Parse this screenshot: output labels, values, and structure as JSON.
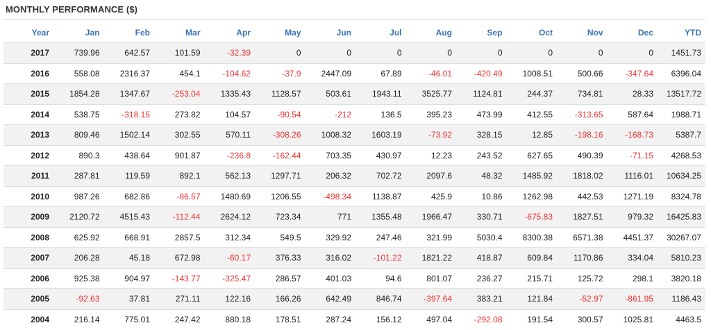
{
  "title": "MONTHLY PERFORMANCE ($)",
  "colors": {
    "header": "#3a73b5",
    "negative": "#ee3333",
    "stripe": "#f2f2f2"
  },
  "chart_data": {
    "type": "table",
    "columns": [
      "Year",
      "Jan",
      "Feb",
      "Mar",
      "Apr",
      "May",
      "Jun",
      "Jul",
      "Aug",
      "Sep",
      "Oct",
      "Nov",
      "Dec",
      "YTD"
    ],
    "rows": [
      [
        "2017",
        "739.96",
        "642.57",
        "101.59",
        "-32.39",
        "0",
        "0",
        "0",
        "0",
        "0",
        "0",
        "0",
        "0",
        "1451.73"
      ],
      [
        "2016",
        "558.08",
        "2316.37",
        "454.1",
        "-104.62",
        "-37.9",
        "2447.09",
        "67.89",
        "-46.01",
        "-420.49",
        "1008.51",
        "500.66",
        "-347.64",
        "6396.04"
      ],
      [
        "2015",
        "1854.28",
        "1347.67",
        "-253.04",
        "1335.43",
        "1128.57",
        "503.61",
        "1943.11",
        "3525.77",
        "1124.81",
        "244.37",
        "734.81",
        "28.33",
        "13517.72"
      ],
      [
        "2014",
        "538.75",
        "-318.15",
        "273.82",
        "104.57",
        "-90.54",
        "-212",
        "136.5",
        "395.23",
        "473.99",
        "412.55",
        "-313.65",
        "587.64",
        "1988.71"
      ],
      [
        "2013",
        "809.46",
        "1502.14",
        "302.55",
        "570.11",
        "-308.26",
        "1008.32",
        "1603.19",
        "-73.92",
        "328.15",
        "12.85",
        "-198.16",
        "-168.73",
        "5387.7"
      ],
      [
        "2012",
        "890.3",
        "438.64",
        "901.87",
        "-236.8",
        "-162.44",
        "703.35",
        "430.97",
        "12.23",
        "243.52",
        "627.65",
        "490.39",
        "-71.15",
        "4268.53"
      ],
      [
        "2011",
        "287.81",
        "119.59",
        "892.1",
        "562.13",
        "1297.71",
        "206.32",
        "702.72",
        "2097.6",
        "48.32",
        "1485.92",
        "1818.02",
        "1116.01",
        "10634.25"
      ],
      [
        "2010",
        "987.26",
        "682.86",
        "-86.57",
        "1480.69",
        "1206.55",
        "-498.34",
        "1138.87",
        "425.9",
        "10.86",
        "1262.98",
        "442.53",
        "1271.19",
        "8324.78"
      ],
      [
        "2009",
        "2120.72",
        "4515.43",
        "-112.44",
        "2624.12",
        "723.34",
        "771",
        "1355.48",
        "1966.47",
        "330.71",
        "-675.83",
        "1827.51",
        "979.32",
        "16425.83"
      ],
      [
        "2008",
        "625.92",
        "668.91",
        "2857.5",
        "312.34",
        "549.5",
        "329.92",
        "247.46",
        "321.99",
        "5030.4",
        "8300.38",
        "6571.38",
        "4451.37",
        "30267.07"
      ],
      [
        "2007",
        "206.28",
        "45.18",
        "672.98",
        "-60.17",
        "376.33",
        "316.02",
        "-101.22",
        "1821.22",
        "418.87",
        "609.84",
        "1170.86",
        "334.04",
        "5810.23"
      ],
      [
        "2006",
        "925.38",
        "904.97",
        "-143.77",
        "-325.47",
        "286.57",
        "401.03",
        "94.6",
        "801.07",
        "236.27",
        "215.71",
        "125.72",
        "298.1",
        "3820.18"
      ],
      [
        "2005",
        "-92.63",
        "37.81",
        "271.11",
        "122.16",
        "166.26",
        "642.49",
        "846.74",
        "-397.64",
        "383.21",
        "121.84",
        "-52.97",
        "-861.95",
        "1186.43"
      ],
      [
        "2004",
        "216.14",
        "775.01",
        "247.42",
        "880.18",
        "178.51",
        "287.24",
        "156.12",
        "497.04",
        "-292.08",
        "191.54",
        "300.57",
        "1025.81",
        "4463.5"
      ]
    ]
  }
}
